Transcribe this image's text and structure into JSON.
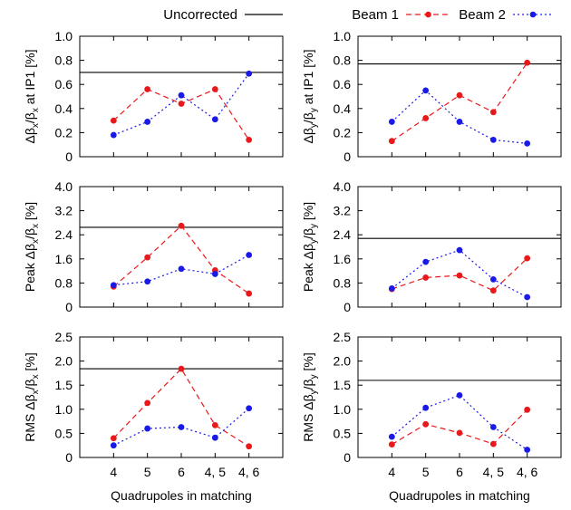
{
  "legend": [
    {
      "label": "Uncorrected",
      "color": "#000000",
      "style": "solid",
      "marker": "none"
    },
    {
      "label": "Beam 1",
      "color": "#e8181b",
      "style": "dashed",
      "marker": "circle"
    },
    {
      "label": "Beam 2",
      "color": "#1a1ae6",
      "style": "dotted",
      "marker": "circle"
    }
  ],
  "chart_data": [
    {
      "type": "line",
      "ylabel_parts": [
        {
          "t": "Δβ"
        },
        {
          "t": "x",
          "sub": true
        },
        {
          "t": "/β"
        },
        {
          "t": "x",
          "sub": true
        },
        {
          "t": " at IP1 [%]"
        }
      ],
      "categories": [
        "4",
        "5",
        "6",
        "4, 5",
        "4, 6"
      ],
      "ylim": [
        0,
        1.0
      ],
      "yticks": [
        "0",
        "0.2",
        "0.4",
        "0.6",
        "0.8",
        "1.0"
      ],
      "ytick_values": [
        0,
        0.2,
        0.4,
        0.6,
        0.8,
        1.0
      ],
      "uncorrected": 0.7,
      "series": [
        {
          "name": "Beam 1",
          "values": [
            0.3,
            0.56,
            0.44,
            0.56,
            0.14
          ]
        },
        {
          "name": "Beam 2",
          "values": [
            0.18,
            0.29,
            0.51,
            0.31,
            0.69
          ]
        }
      ]
    },
    {
      "type": "line",
      "ylabel_parts": [
        {
          "t": "Δβ"
        },
        {
          "t": "y",
          "sub": true
        },
        {
          "t": "/β"
        },
        {
          "t": "y",
          "sub": true
        },
        {
          "t": " at IP1 [%]"
        }
      ],
      "categories": [
        "4",
        "5",
        "6",
        "4, 5",
        "4, 6"
      ],
      "ylim": [
        0,
        1.0
      ],
      "yticks": [
        "0",
        "0.2",
        "0.4",
        "0.6",
        "0.8",
        "1.0"
      ],
      "ytick_values": [
        0,
        0.2,
        0.4,
        0.6,
        0.8,
        1.0
      ],
      "uncorrected": 0.77,
      "series": [
        {
          "name": "Beam 1",
          "values": [
            0.13,
            0.32,
            0.51,
            0.37,
            0.78
          ]
        },
        {
          "name": "Beam 2",
          "values": [
            0.29,
            0.55,
            0.29,
            0.14,
            0.11
          ]
        }
      ]
    },
    {
      "type": "line",
      "ylabel_parts": [
        {
          "t": "Peak Δβ"
        },
        {
          "t": "x",
          "sub": true
        },
        {
          "t": "/β"
        },
        {
          "t": "x",
          "sub": true
        },
        {
          "t": " [%]"
        }
      ],
      "categories": [
        "4",
        "5",
        "6",
        "4, 5",
        "4, 6"
      ],
      "ylim": [
        0,
        4.0
      ],
      "yticks": [
        "0",
        "0.8",
        "1.6",
        "2.4",
        "3.2",
        "4.0"
      ],
      "ytick_values": [
        0,
        0.8,
        1.6,
        2.4,
        3.2,
        4.0
      ],
      "uncorrected": 2.65,
      "series": [
        {
          "name": "Beam 1",
          "values": [
            0.68,
            1.65,
            2.7,
            1.22,
            0.45
          ]
        },
        {
          "name": "Beam 2",
          "values": [
            0.73,
            0.85,
            1.27,
            1.1,
            1.73
          ]
        }
      ]
    },
    {
      "type": "line",
      "ylabel_parts": [
        {
          "t": "Peak Δβ"
        },
        {
          "t": "y",
          "sub": true
        },
        {
          "t": "/β"
        },
        {
          "t": "y",
          "sub": true
        },
        {
          "t": " [%]"
        }
      ],
      "categories": [
        "4",
        "5",
        "6",
        "4, 5",
        "4, 6"
      ],
      "ylim": [
        0,
        4.0
      ],
      "yticks": [
        "0",
        "0.8",
        "1.6",
        "2.4",
        "3.2",
        "4.0"
      ],
      "ytick_values": [
        0,
        0.8,
        1.6,
        2.4,
        3.2,
        4.0
      ],
      "uncorrected": 2.28,
      "series": [
        {
          "name": "Beam 1",
          "values": [
            0.6,
            0.98,
            1.05,
            0.55,
            1.62
          ]
        },
        {
          "name": "Beam 2",
          "values": [
            0.62,
            1.5,
            1.89,
            0.92,
            0.33
          ]
        }
      ]
    },
    {
      "type": "line",
      "ylabel_parts": [
        {
          "t": "RMS Δβ"
        },
        {
          "t": "x",
          "sub": true
        },
        {
          "t": "/β"
        },
        {
          "t": "x",
          "sub": true
        },
        {
          "t": " [%]"
        }
      ],
      "categories": [
        "4",
        "5",
        "6",
        "4, 5",
        "4, 6"
      ],
      "xlabel": "Quadrupoles in matching",
      "ylim": [
        0,
        2.5
      ],
      "yticks": [
        "0",
        "0.5",
        "1.0",
        "1.5",
        "2.0",
        "2.5"
      ],
      "ytick_values": [
        0,
        0.5,
        1.0,
        1.5,
        2.0,
        2.5
      ],
      "uncorrected": 1.84,
      "series": [
        {
          "name": "Beam 1",
          "values": [
            0.4,
            1.13,
            1.84,
            0.67,
            0.23
          ]
        },
        {
          "name": "Beam 2",
          "values": [
            0.25,
            0.6,
            0.63,
            0.41,
            1.02
          ]
        }
      ]
    },
    {
      "type": "line",
      "ylabel_parts": [
        {
          "t": "RMS Δβ"
        },
        {
          "t": "y",
          "sub": true
        },
        {
          "t": "/β"
        },
        {
          "t": "y",
          "sub": true
        },
        {
          "t": " [%]"
        }
      ],
      "categories": [
        "4",
        "5",
        "6",
        "4, 5",
        "4, 6"
      ],
      "xlabel": "Quadrupoles in matching",
      "ylim": [
        0,
        2.5
      ],
      "yticks": [
        "0",
        "0.5",
        "1.0",
        "1.5",
        "2.0",
        "2.5"
      ],
      "ytick_values": [
        0,
        0.5,
        1.0,
        1.5,
        2.0,
        2.5
      ],
      "uncorrected": 1.6,
      "series": [
        {
          "name": "Beam 1",
          "values": [
            0.27,
            0.69,
            0.51,
            0.28,
            0.99
          ]
        },
        {
          "name": "Beam 2",
          "values": [
            0.43,
            1.03,
            1.29,
            0.63,
            0.16
          ]
        }
      ]
    }
  ]
}
